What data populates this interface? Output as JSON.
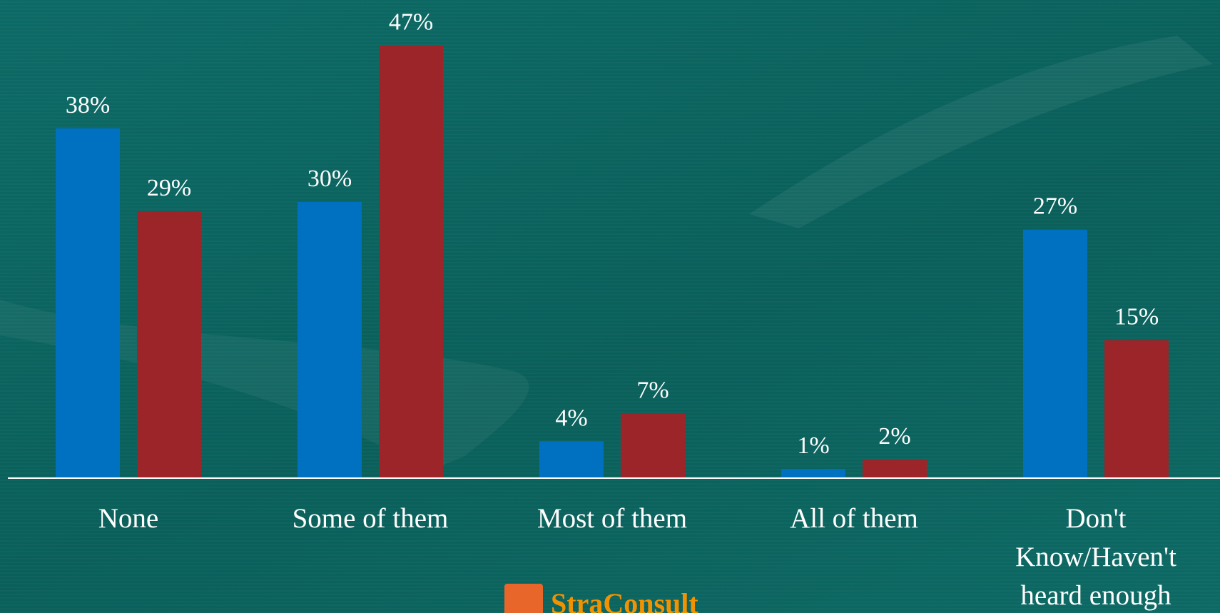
{
  "chart_data": {
    "type": "bar",
    "categories": [
      "None",
      "Some of them",
      "Most of them",
      "All of them",
      "Don't Know/Haven't heard enough"
    ],
    "series": [
      {
        "color": "#0070c0",
        "values": [
          38,
          30,
          4,
          1,
          27
        ],
        "value_labels": [
          "38%",
          "30%",
          "4%",
          "1%",
          "27%"
        ]
      },
      {
        "color": "#9b2528",
        "values": [
          29,
          47,
          7,
          2,
          15
        ],
        "value_labels": [
          "29%",
          "47%",
          "7%",
          "2%",
          "15%"
        ]
      }
    ],
    "ylim": [
      0,
      50
    ],
    "logo": "StraConsult"
  }
}
